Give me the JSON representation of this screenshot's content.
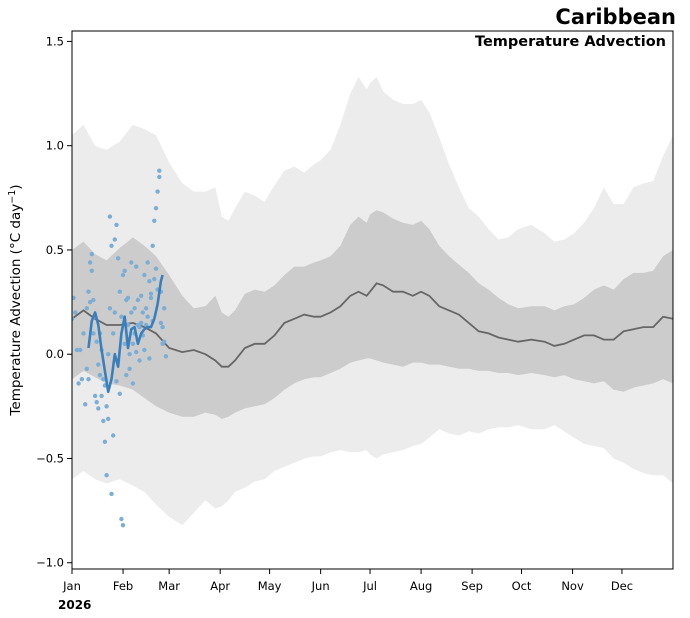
{
  "colors": {
    "outer_band": "#ececec",
    "inner_band": "#cccccc",
    "climatology_line": "#666666",
    "obs_points": "#7aaed6",
    "obs_smooth": "#3a7fbd"
  },
  "chart_data": {
    "type": "line",
    "title": "Caribbean",
    "subtitle": "Temperature Advection",
    "xlabel": "",
    "ylabel": "Temperature Advection (°C day⁻¹)",
    "ylabel_parts": {
      "main": "Temperature Advection (",
      "unit_base": "°C day",
      "sup": "−1",
      "close": ")"
    },
    "year_label": "2026",
    "xlim": [
      1,
      366
    ],
    "ylim": [
      -1.03,
      1.55
    ],
    "grid": false,
    "legend": "none",
    "x_ticks": [
      {
        "day": 1,
        "label": "Jan"
      },
      {
        "day": 32,
        "label": "Feb"
      },
      {
        "day": 60,
        "label": "Mar"
      },
      {
        "day": 91,
        "label": "Apr"
      },
      {
        "day": 121,
        "label": "May"
      },
      {
        "day": 152,
        "label": "Jun"
      },
      {
        "day": 182,
        "label": "Jul"
      },
      {
        "day": 213,
        "label": "Aug"
      },
      {
        "day": 244,
        "label": "Sep"
      },
      {
        "day": 274,
        "label": "Oct"
      },
      {
        "day": 305,
        "label": "Nov"
      },
      {
        "day": 335,
        "label": "Dec"
      }
    ],
    "y_ticks": [
      {
        "value": 1.5,
        "label": "1.5"
      },
      {
        "value": 1.0,
        "label": "1.0"
      },
      {
        "value": 0.5,
        "label": "0.5"
      },
      {
        "value": 0.0,
        "label": "0.0"
      },
      {
        "value": -0.5,
        "label": "−0.5"
      },
      {
        "value": -1.0,
        "label": "−1.0"
      }
    ],
    "climatology": {
      "x": [
        1,
        8,
        15,
        22,
        30,
        38,
        45,
        52,
        60,
        68,
        75,
        82,
        88,
        92,
        96,
        100,
        106,
        112,
        118,
        124,
        130,
        136,
        142,
        148,
        152,
        158,
        164,
        170,
        175,
        180,
        182,
        186,
        190,
        196,
        202,
        208,
        213,
        218,
        224,
        230,
        236,
        242,
        248,
        254,
        260,
        266,
        272,
        280,
        288,
        294,
        300,
        306,
        312,
        318,
        324,
        330,
        336,
        342,
        348,
        354,
        360,
        366
      ],
      "mean": [
        0.17,
        0.21,
        0.17,
        0.14,
        0.14,
        0.15,
        0.13,
        0.1,
        0.03,
        0.01,
        0.02,
        0.0,
        -0.03,
        -0.06,
        -0.06,
        -0.03,
        0.03,
        0.05,
        0.05,
        0.09,
        0.15,
        0.17,
        0.19,
        0.18,
        0.18,
        0.2,
        0.23,
        0.28,
        0.3,
        0.28,
        0.3,
        0.34,
        0.33,
        0.3,
        0.3,
        0.28,
        0.3,
        0.28,
        0.23,
        0.21,
        0.19,
        0.15,
        0.11,
        0.1,
        0.08,
        0.07,
        0.06,
        0.07,
        0.06,
        0.04,
        0.05,
        0.07,
        0.09,
        0.09,
        0.07,
        0.07,
        0.11,
        0.12,
        0.13,
        0.13,
        0.18,
        0.17
      ],
      "inner_low": [
        -0.12,
        -0.08,
        -0.11,
        -0.14,
        -0.15,
        -0.17,
        -0.21,
        -0.25,
        -0.28,
        -0.3,
        -0.3,
        -0.28,
        -0.29,
        -0.31,
        -0.3,
        -0.28,
        -0.26,
        -0.25,
        -0.24,
        -0.21,
        -0.17,
        -0.14,
        -0.12,
        -0.11,
        -0.11,
        -0.09,
        -0.07,
        -0.04,
        -0.03,
        -0.02,
        -0.02,
        -0.03,
        -0.04,
        -0.05,
        -0.06,
        -0.04,
        -0.04,
        -0.05,
        -0.05,
        -0.06,
        -0.07,
        -0.07,
        -0.08,
        -0.08,
        -0.09,
        -0.09,
        -0.1,
        -0.09,
        -0.1,
        -0.11,
        -0.1,
        -0.12,
        -0.13,
        -0.14,
        -0.13,
        -0.17,
        -0.18,
        -0.16,
        -0.15,
        -0.14,
        -0.12,
        -0.14
      ],
      "inner_high": [
        0.5,
        0.54,
        0.48,
        0.45,
        0.51,
        0.56,
        0.52,
        0.47,
        0.38,
        0.28,
        0.22,
        0.23,
        0.28,
        0.2,
        0.18,
        0.21,
        0.29,
        0.31,
        0.3,
        0.33,
        0.38,
        0.42,
        0.42,
        0.44,
        0.45,
        0.47,
        0.52,
        0.62,
        0.66,
        0.63,
        0.67,
        0.69,
        0.68,
        0.65,
        0.63,
        0.62,
        0.64,
        0.6,
        0.52,
        0.47,
        0.43,
        0.39,
        0.34,
        0.31,
        0.27,
        0.24,
        0.22,
        0.23,
        0.23,
        0.21,
        0.23,
        0.24,
        0.27,
        0.31,
        0.33,
        0.31,
        0.36,
        0.39,
        0.39,
        0.4,
        0.47,
        0.5
      ],
      "outer_low": [
        -0.6,
        -0.56,
        -0.6,
        -0.62,
        -0.6,
        -0.63,
        -0.66,
        -0.72,
        -0.78,
        -0.82,
        -0.76,
        -0.7,
        -0.74,
        -0.73,
        -0.7,
        -0.66,
        -0.64,
        -0.61,
        -0.6,
        -0.56,
        -0.54,
        -0.52,
        -0.5,
        -0.49,
        -0.49,
        -0.47,
        -0.46,
        -0.47,
        -0.47,
        -0.46,
        -0.48,
        -0.5,
        -0.48,
        -0.47,
        -0.46,
        -0.44,
        -0.43,
        -0.4,
        -0.36,
        -0.38,
        -0.39,
        -0.37,
        -0.38,
        -0.36,
        -0.35,
        -0.35,
        -0.34,
        -0.36,
        -0.36,
        -0.34,
        -0.37,
        -0.4,
        -0.43,
        -0.44,
        -0.45,
        -0.5,
        -0.52,
        -0.55,
        -0.57,
        -0.58,
        -0.58,
        -0.62
      ],
      "outer_high": [
        1.05,
        1.1,
        1.0,
        0.98,
        1.02,
        1.1,
        1.08,
        1.05,
        0.92,
        0.82,
        0.78,
        0.78,
        0.8,
        0.66,
        0.64,
        0.7,
        0.78,
        0.76,
        0.73,
        0.81,
        0.88,
        0.9,
        0.87,
        0.91,
        0.93,
        0.98,
        1.1,
        1.25,
        1.33,
        1.27,
        1.3,
        1.33,
        1.26,
        1.22,
        1.2,
        1.2,
        1.22,
        1.16,
        1.04,
        0.91,
        0.8,
        0.7,
        0.66,
        0.6,
        0.55,
        0.56,
        0.6,
        0.62,
        0.58,
        0.54,
        0.55,
        0.58,
        0.63,
        0.7,
        0.8,
        0.72,
        0.72,
        0.8,
        0.82,
        0.83,
        0.95,
        1.05
      ]
    },
    "observed_smooth": {
      "x": [
        11,
        13,
        15,
        17,
        19,
        21,
        23,
        25,
        27,
        29,
        31,
        33,
        35,
        37,
        39,
        41,
        43,
        45,
        47,
        49,
        51,
        53,
        55,
        56
      ],
      "y": [
        0.03,
        0.16,
        0.2,
        0.14,
        0.02,
        -0.08,
        -0.18,
        -0.12,
        0.0,
        -0.06,
        0.1,
        0.18,
        0.03,
        0.12,
        0.13,
        0.05,
        0.1,
        0.12,
        0.13,
        0.13,
        0.17,
        0.24,
        0.35,
        0.38
      ]
    },
    "observed_points": {
      "x": [
        1,
        2,
        3,
        4,
        5,
        6,
        7,
        8,
        9,
        10,
        10,
        11,
        11,
        12,
        12,
        13,
        13,
        14,
        14,
        15,
        15,
        16,
        16,
        17,
        17,
        18,
        18,
        19,
        19,
        20,
        20,
        21,
        21,
        22,
        22,
        23,
        23,
        24,
        24,
        25,
        25,
        26,
        26,
        27,
        27,
        28,
        28,
        29,
        29,
        30,
        30,
        31,
        31,
        32,
        32,
        33,
        33,
        34,
        34,
        35,
        35,
        36,
        36,
        37,
        37,
        38,
        38,
        39,
        39,
        40,
        40,
        41,
        41,
        42,
        42,
        43,
        43,
        44,
        44,
        45,
        45,
        46,
        46,
        47,
        47,
        48,
        48,
        49,
        49,
        50,
        50,
        51,
        51,
        52,
        52,
        53,
        53,
        54,
        54,
        55,
        55,
        56,
        56,
        57,
        57,
        58
      ],
      "y": [
        0.17,
        0.27,
        0.2,
        0.02,
        -0.14,
        0.02,
        -0.12,
        0.1,
        -0.24,
        -0.07,
        0.22,
        -0.12,
        0.3,
        0.25,
        0.44,
        0.4,
        0.48,
        0.1,
        0.26,
        -0.2,
        0.18,
        -0.23,
        0.06,
        -0.26,
        -0.05,
        -0.1,
        0.1,
        -0.2,
        0.02,
        -0.32,
        -0.12,
        -0.42,
        -0.15,
        -0.58,
        -0.25,
        -0.31,
        0.0,
        0.66,
        0.22,
        0.52,
        -0.67,
        -0.39,
        0.1,
        0.55,
        0.2,
        -0.13,
        0.62,
        0.46,
        -0.03,
        -0.19,
        0.3,
        -0.79,
        0.18,
        -0.82,
        0.38,
        0.4,
        0.05,
        0.26,
        -0.1,
        0.14,
        0.27,
        -0.07,
        0.0,
        0.44,
        0.2,
        0.05,
        -0.14,
        0.22,
        0.1,
        0.42,
        0.01,
        0.26,
        0.14,
        0.13,
        -0.03,
        0.28,
        0.15,
        0.2,
        0.09,
        0.38,
        0.02,
        0.22,
        0.14,
        0.44,
        0.18,
        0.35,
        -0.02,
        0.29,
        0.27,
        0.52,
        0.16,
        0.64,
        0.36,
        0.7,
        0.41,
        0.78,
        0.31,
        0.85,
        0.88,
        0.15,
        0.3,
        0.05,
        0.13,
        0.22,
        0.06,
        -0.01
      ]
    }
  }
}
